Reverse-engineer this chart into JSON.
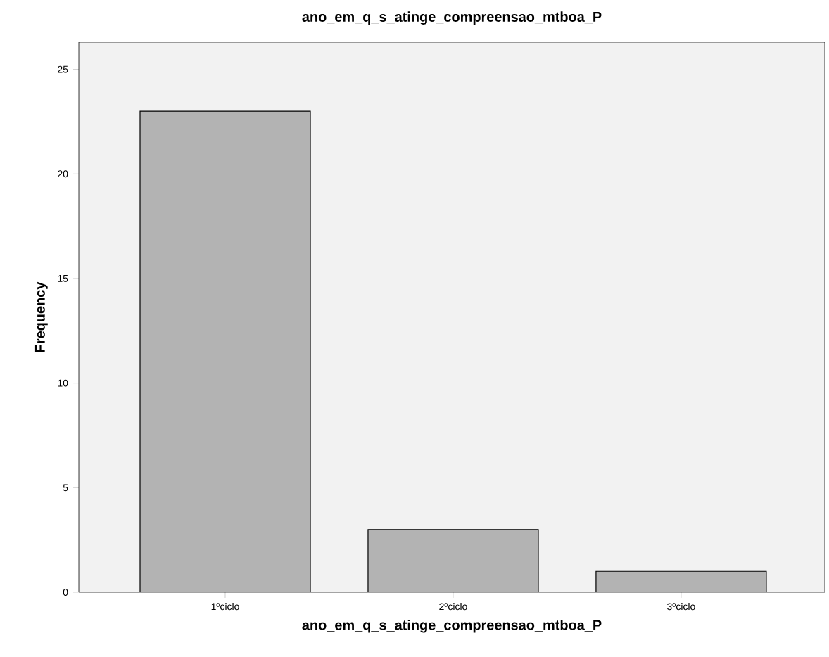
{
  "chart_data": {
    "type": "bar",
    "title": "ano_em_q_s_atinge_compreensao_mtboa_P",
    "xlabel": "ano_em_q_s_atinge_compreensao_mtboa_P",
    "ylabel": "Frequency",
    "categories": [
      "1ºciclo",
      "2ºciclo",
      "3ºciclo"
    ],
    "values": [
      23,
      3,
      1
    ],
    "color": "#b3b3b3",
    "ylim": [
      0,
      26.3
    ],
    "yticks": [
      0,
      5,
      10,
      15,
      20,
      25
    ],
    "grid": false
  }
}
